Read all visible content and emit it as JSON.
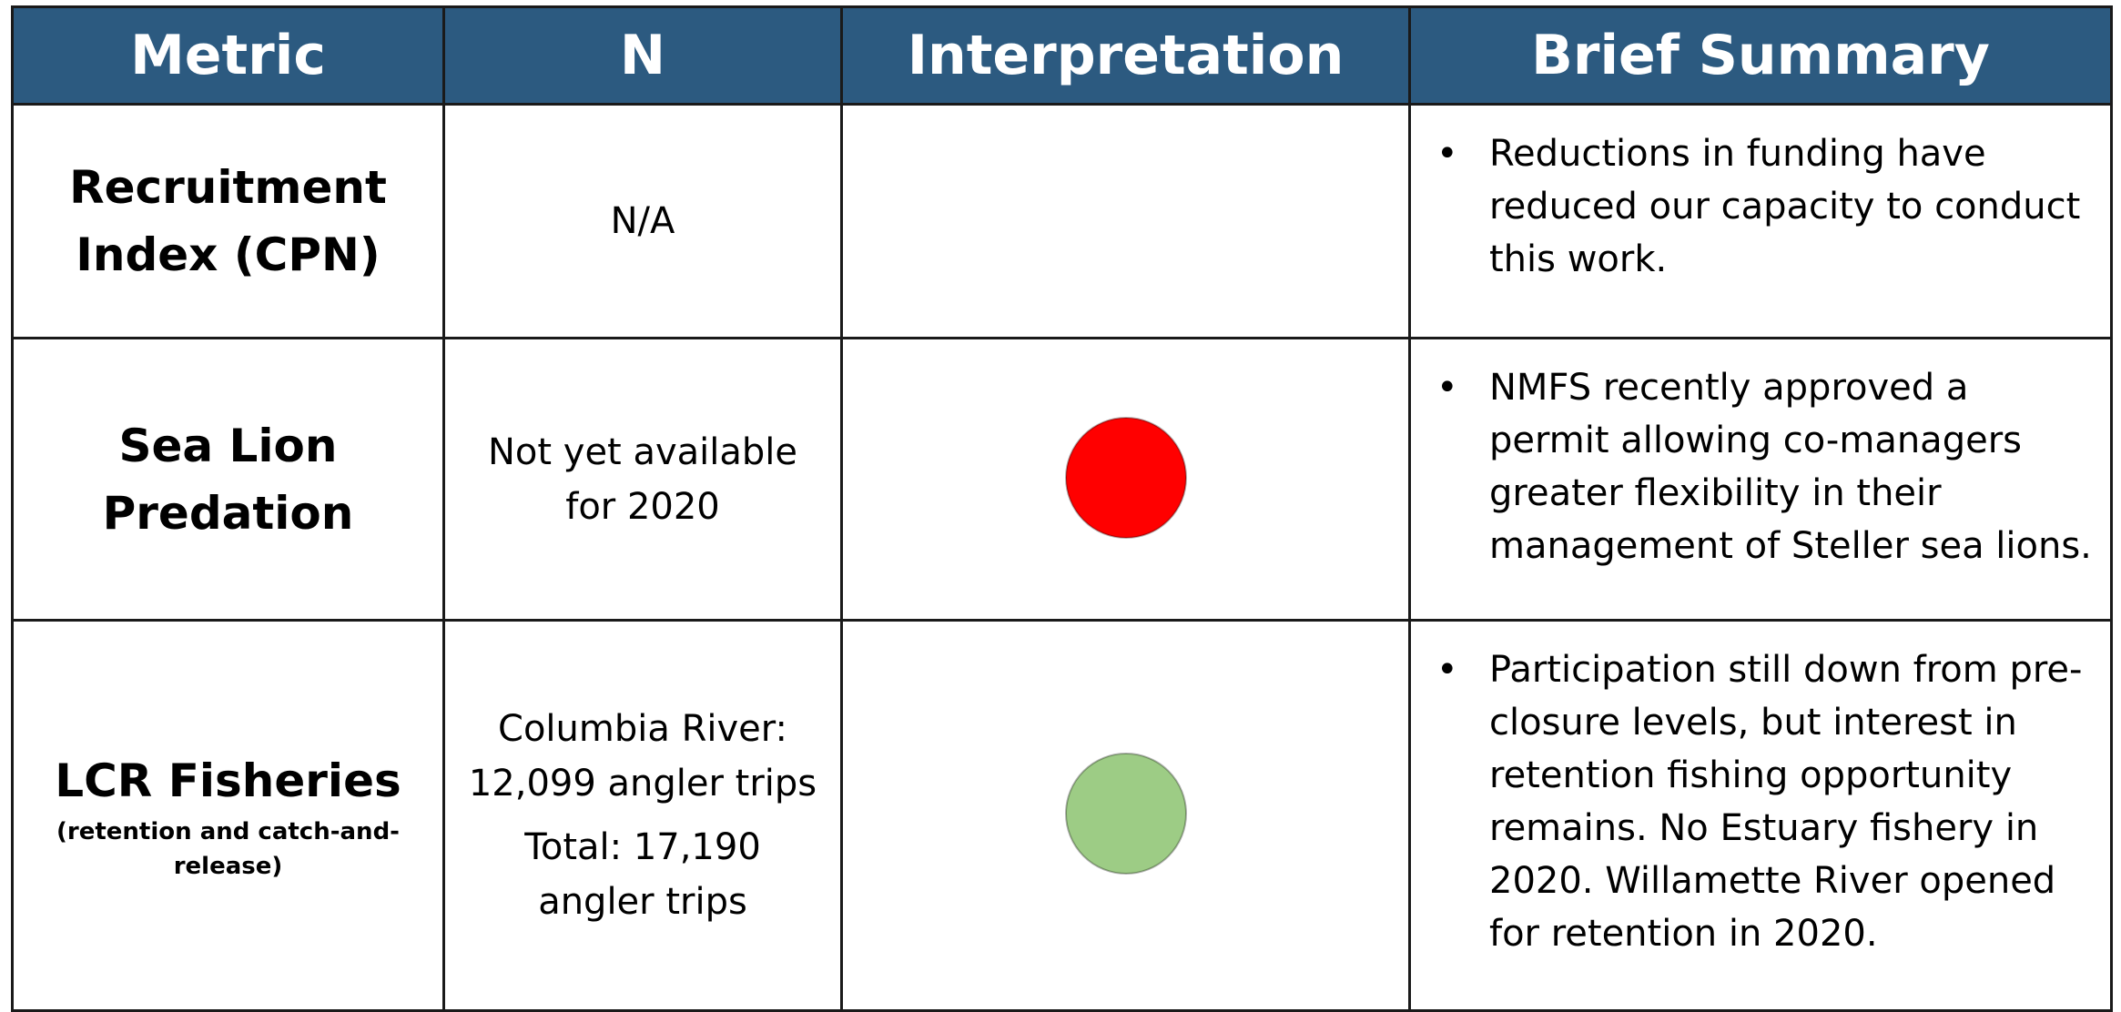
{
  "table": {
    "header": [
      "Metric",
      "N",
      "Interpretation",
      "Brief Summary"
    ],
    "rows": [
      {
        "metric": "Recruitment Index (CPN)",
        "n": [
          "N/A"
        ],
        "summary": [
          "Reductions in funding have reduced our capacity to conduct this work."
        ]
      },
      {
        "metric": "Sea Lion Predation",
        "n": [
          "Not yet available for 2020"
        ],
        "indicator_color": "#ff0000",
        "summary": [
          "NMFS recently approved a permit allowing co-managers greater flexibility in their management of Steller sea lions."
        ]
      },
      {
        "metric": "LCR Fisheries",
        "metric_note": "(retention and catch-and-release)",
        "n": [
          "Columbia River: 12,099 angler trips",
          "Total: 17,190 angler trips"
        ],
        "indicator_color": "#9dcc85",
        "summary": [
          "Participation still down from pre-closure levels, but interest in retention fishing opportunity remains.  No Estuary fishery in 2020. Willamette River opened for retention in 2020."
        ]
      }
    ]
  }
}
